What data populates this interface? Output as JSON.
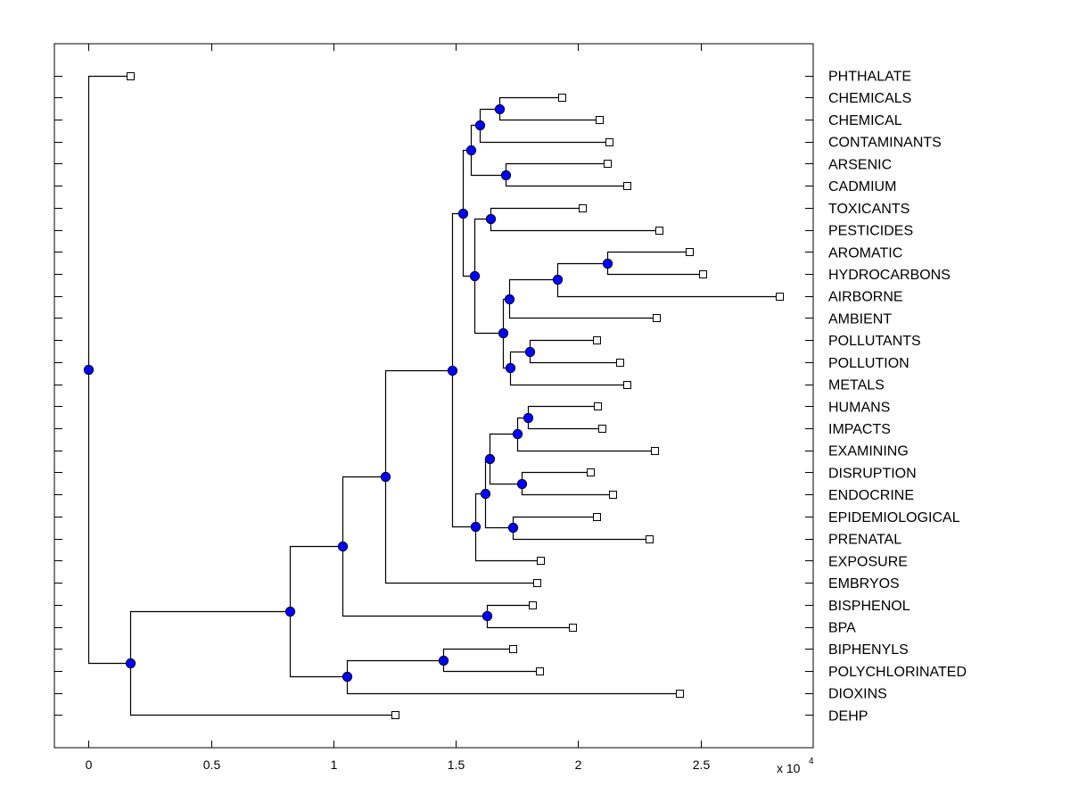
{
  "chart_data": {
    "type": "dendrogram",
    "title": "",
    "xlabel": "",
    "ylabel": "",
    "x_multiplier_label": "x 10",
    "x_multiplier_exponent": "4",
    "xlim": [
      -0.14,
      2.96
    ],
    "xticks": [
      0,
      0.5,
      1,
      1.5,
      2,
      2.5
    ],
    "xtick_labels": [
      "0",
      "0.5",
      "1",
      "1.5",
      "2",
      "2.5"
    ],
    "grid": false,
    "colors": {
      "internal_node": "#0000ff",
      "internal_node_edge": "#000000",
      "leaf_marker_fill": "#ffffff",
      "line": "#000000"
    },
    "leaves": [
      {
        "id": "PHTHALATE",
        "label": "PHTHALATE",
        "value": 0.168
      },
      {
        "id": "CHEMICALS",
        "label": "CHEMICALS",
        "value": 1.934
      },
      {
        "id": "CHEMICAL",
        "label": "CHEMICAL",
        "value": 2.084
      },
      {
        "id": "CONTAMINANTS",
        "label": "CONTAMINANTS",
        "value": 2.127
      },
      {
        "id": "ARSENIC",
        "label": "ARSENIC",
        "value": 2.12
      },
      {
        "id": "CADMIUM",
        "label": "CADMIUM",
        "value": 2.2
      },
      {
        "id": "TOXICANTS",
        "label": "TOXICANTS",
        "value": 2.018
      },
      {
        "id": "PESTICIDES",
        "label": "PESTICIDES",
        "value": 2.328
      },
      {
        "id": "AROMATIC",
        "label": "AROMATIC",
        "value": 2.452
      },
      {
        "id": "HYDROCARBONS",
        "label": "HYDROCARBONS",
        "value": 2.51
      },
      {
        "id": "AIRBORNE",
        "label": "AIRBORNE",
        "value": 2.82
      },
      {
        "id": "AMBIENT",
        "label": "AMBIENT",
        "value": 2.32
      },
      {
        "id": "POLLUTANTS",
        "label": "POLLUTANTS",
        "value": 2.073
      },
      {
        "id": "POLLUTION",
        "label": "POLLUTION",
        "value": 2.168
      },
      {
        "id": "METALS",
        "label": "METALS",
        "value": 2.197
      },
      {
        "id": "HUMANS",
        "label": "HUMANS",
        "value": 2.08
      },
      {
        "id": "IMPACTS",
        "label": "IMPACTS",
        "value": 2.095
      },
      {
        "id": "EXAMINING",
        "label": "EXAMINING",
        "value": 2.313
      },
      {
        "id": "DISRUPTION",
        "label": "DISRUPTION",
        "value": 2.05
      },
      {
        "id": "ENDOCRINE",
        "label": "ENDOCRINE",
        "value": 2.14
      },
      {
        "id": "EPIDEMIOLOGICAL",
        "label": "EPIDEMIOLOGICAL",
        "value": 2.073
      },
      {
        "id": "PRENATAL",
        "label": "PRENATAL",
        "value": 2.29
      },
      {
        "id": "EXPOSURE",
        "label": "EXPOSURE",
        "value": 1.847
      },
      {
        "id": "EMBRYOS",
        "label": "EMBRYOS",
        "value": 1.832
      },
      {
        "id": "BISPHENOL",
        "label": "BISPHENOL",
        "value": 1.814
      },
      {
        "id": "BPA",
        "label": "BPA",
        "value": 1.975
      },
      {
        "id": "BIPHENYLS",
        "label": "BIPHENYLS",
        "value": 1.734
      },
      {
        "id": "POLYCHLORINATED",
        "label": "POLYCHLORINATED",
        "value": 1.84
      },
      {
        "id": "DIOXINS",
        "label": "DIOXINS",
        "value": 2.415
      },
      {
        "id": "DEHP",
        "label": "DEHP",
        "value": 1.253
      }
    ],
    "internal_nodes": [
      {
        "id": "n_chem2",
        "value": 1.676,
        "children": [
          "CHEMICALS",
          "CHEMICAL"
        ]
      },
      {
        "id": "n_chem3",
        "value": 1.596,
        "children": [
          "n_chem2",
          "CONTAMINANTS"
        ]
      },
      {
        "id": "n_metal2",
        "value": 1.705,
        "children": [
          "ARSENIC",
          "CADMIUM"
        ]
      },
      {
        "id": "n_chemmetal",
        "value": 1.56,
        "children": [
          "n_chem3",
          "n_metal2"
        ]
      },
      {
        "id": "n_toxpest",
        "value": 1.643,
        "children": [
          "TOXICANTS",
          "PESTICIDES"
        ]
      },
      {
        "id": "n_arohyd",
        "value": 2.12,
        "children": [
          "AROMATIC",
          "HYDROCARBONS"
        ]
      },
      {
        "id": "n_air",
        "value": 1.913,
        "children": [
          "n_arohyd",
          "AIRBORNE"
        ]
      },
      {
        "id": "n_amb",
        "value": 1.716,
        "children": [
          "n_air",
          "AMBIENT"
        ]
      },
      {
        "id": "n_poll2",
        "value": 1.803,
        "children": [
          "POLLUTANTS",
          "POLLUTION"
        ]
      },
      {
        "id": "n_pollmet",
        "value": 1.723,
        "children": [
          "n_poll2",
          "METALS"
        ]
      },
      {
        "id": "n_envir",
        "value": 1.694,
        "children": [
          "n_amb",
          "n_pollmet"
        ]
      },
      {
        "id": "n_toxenv",
        "value": 1.577,
        "children": [
          "n_toxpest",
          "n_envir"
        ]
      },
      {
        "id": "n_upper",
        "value": 1.53,
        "children": [
          "n_chemmetal",
          "n_toxenv"
        ]
      },
      {
        "id": "n_hum",
        "value": 1.796,
        "children": [
          "HUMANS",
          "IMPACTS"
        ]
      },
      {
        "id": "n_exam",
        "value": 1.749,
        "children": [
          "n_hum",
          "EXAMINING"
        ]
      },
      {
        "id": "n_endo",
        "value": 1.77,
        "children": [
          "DISRUPTION",
          "ENDOCRINE"
        ]
      },
      {
        "id": "n_hum_endo",
        "value": 1.636,
        "children": [
          "n_exam",
          "n_endo"
        ]
      },
      {
        "id": "n_epi",
        "value": 1.734,
        "children": [
          "EPIDEMIOLOGICAL",
          "PRENATAL"
        ]
      },
      {
        "id": "n_health",
        "value": 1.621,
        "children": [
          "n_hum_endo",
          "n_epi"
        ]
      },
      {
        "id": "n_expo",
        "value": 1.581,
        "children": [
          "n_health",
          "EXPOSURE"
        ]
      },
      {
        "id": "n_big",
        "value": 1.483,
        "children": [
          "n_upper",
          "n_expo"
        ]
      },
      {
        "id": "n_emb",
        "value": 1.213,
        "children": [
          "n_big",
          "EMBRYOS"
        ]
      },
      {
        "id": "n_bpa",
        "value": 1.628,
        "children": [
          "BISPHENOL",
          "BPA"
        ]
      },
      {
        "id": "n_embbpa",
        "value": 1.035,
        "children": [
          "n_emb",
          "n_bpa"
        ]
      },
      {
        "id": "n_pcb",
        "value": 1.45,
        "children": [
          "BIPHENYLS",
          "POLYCHLORINATED"
        ]
      },
      {
        "id": "n_diox",
        "value": 1.056,
        "children": [
          "n_pcb",
          "DIOXINS"
        ]
      },
      {
        "id": "n_mid",
        "value": 0.82,
        "children": [
          "n_embbpa",
          "n_diox"
        ]
      },
      {
        "id": "n_dehp",
        "value": 0.168,
        "children": [
          "n_mid",
          "DEHP"
        ]
      },
      {
        "id": "root",
        "value": 0.0,
        "children": [
          "PHTHALATE",
          "n_dehp"
        ]
      }
    ]
  }
}
